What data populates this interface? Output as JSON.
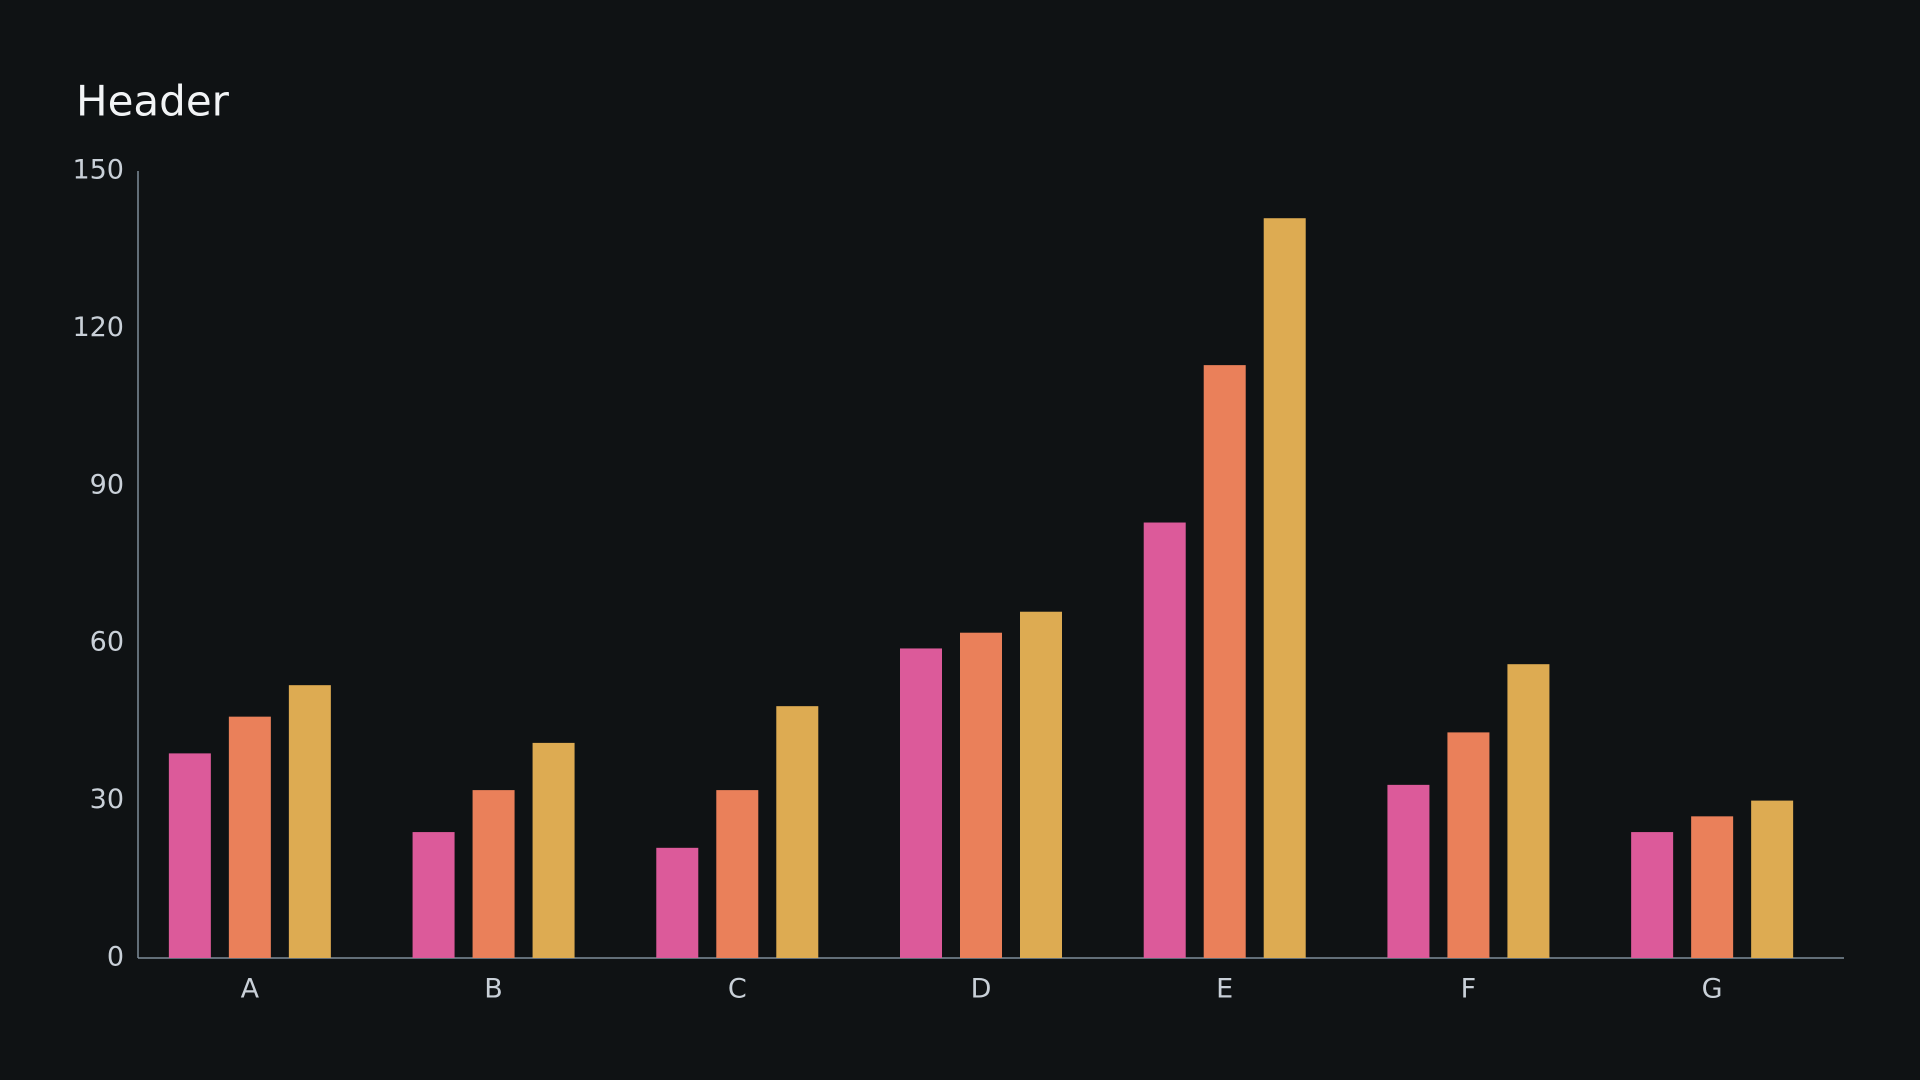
{
  "chart_data": {
    "type": "bar",
    "title": "Header",
    "categories": [
      "A",
      "B",
      "C",
      "D",
      "E",
      "F",
      "G"
    ],
    "series": [
      {
        "color": "#dc5a9a",
        "values": [
          39,
          24,
          21,
          59,
          83,
          33,
          24
        ]
      },
      {
        "color": "#ea805a",
        "values": [
          46,
          32,
          32,
          62,
          113,
          43,
          27
        ]
      },
      {
        "color": "#ddab52",
        "values": [
          52,
          41,
          48,
          66,
          141,
          56,
          30
        ]
      }
    ],
    "ylim": [
      0,
      150
    ],
    "yticks": [
      0,
      30,
      60,
      90,
      120,
      150
    ],
    "grid": false
  }
}
